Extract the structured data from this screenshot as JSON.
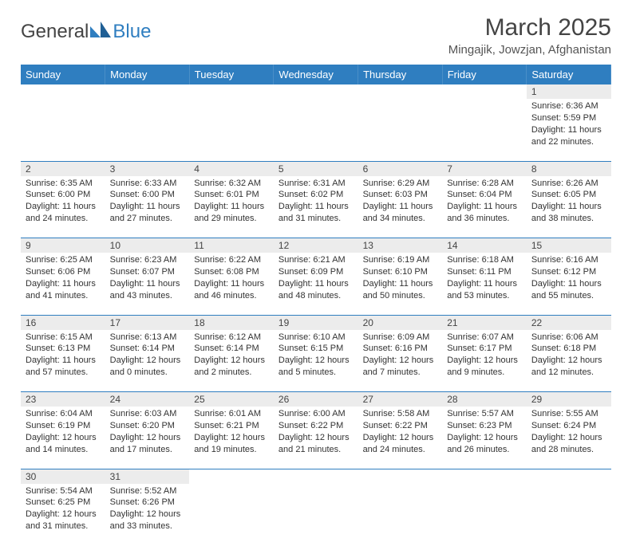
{
  "logo": {
    "text1": "General",
    "text2": "Blue"
  },
  "title": "March 2025",
  "location": "Mingajik, Jowzjan, Afghanistan",
  "colors": {
    "header_bg": "#2f7ec0",
    "header_text": "#ffffff",
    "daynum_bg": "#ececec",
    "border": "#2f7ec0",
    "body_text": "#333333"
  },
  "weekdays": [
    "Sunday",
    "Monday",
    "Tuesday",
    "Wednesday",
    "Thursday",
    "Friday",
    "Saturday"
  ],
  "weeks": [
    [
      null,
      null,
      null,
      null,
      null,
      null,
      {
        "n": "1",
        "sr": "6:36 AM",
        "ss": "5:59 PM",
        "dl": "11 hours and 22 minutes."
      }
    ],
    [
      {
        "n": "2",
        "sr": "6:35 AM",
        "ss": "6:00 PM",
        "dl": "11 hours and 24 minutes."
      },
      {
        "n": "3",
        "sr": "6:33 AM",
        "ss": "6:00 PM",
        "dl": "11 hours and 27 minutes."
      },
      {
        "n": "4",
        "sr": "6:32 AM",
        "ss": "6:01 PM",
        "dl": "11 hours and 29 minutes."
      },
      {
        "n": "5",
        "sr": "6:31 AM",
        "ss": "6:02 PM",
        "dl": "11 hours and 31 minutes."
      },
      {
        "n": "6",
        "sr": "6:29 AM",
        "ss": "6:03 PM",
        "dl": "11 hours and 34 minutes."
      },
      {
        "n": "7",
        "sr": "6:28 AM",
        "ss": "6:04 PM",
        "dl": "11 hours and 36 minutes."
      },
      {
        "n": "8",
        "sr": "6:26 AM",
        "ss": "6:05 PM",
        "dl": "11 hours and 38 minutes."
      }
    ],
    [
      {
        "n": "9",
        "sr": "6:25 AM",
        "ss": "6:06 PM",
        "dl": "11 hours and 41 minutes."
      },
      {
        "n": "10",
        "sr": "6:23 AM",
        "ss": "6:07 PM",
        "dl": "11 hours and 43 minutes."
      },
      {
        "n": "11",
        "sr": "6:22 AM",
        "ss": "6:08 PM",
        "dl": "11 hours and 46 minutes."
      },
      {
        "n": "12",
        "sr": "6:21 AM",
        "ss": "6:09 PM",
        "dl": "11 hours and 48 minutes."
      },
      {
        "n": "13",
        "sr": "6:19 AM",
        "ss": "6:10 PM",
        "dl": "11 hours and 50 minutes."
      },
      {
        "n": "14",
        "sr": "6:18 AM",
        "ss": "6:11 PM",
        "dl": "11 hours and 53 minutes."
      },
      {
        "n": "15",
        "sr": "6:16 AM",
        "ss": "6:12 PM",
        "dl": "11 hours and 55 minutes."
      }
    ],
    [
      {
        "n": "16",
        "sr": "6:15 AM",
        "ss": "6:13 PM",
        "dl": "11 hours and 57 minutes."
      },
      {
        "n": "17",
        "sr": "6:13 AM",
        "ss": "6:14 PM",
        "dl": "12 hours and 0 minutes."
      },
      {
        "n": "18",
        "sr": "6:12 AM",
        "ss": "6:14 PM",
        "dl": "12 hours and 2 minutes."
      },
      {
        "n": "19",
        "sr": "6:10 AM",
        "ss": "6:15 PM",
        "dl": "12 hours and 5 minutes."
      },
      {
        "n": "20",
        "sr": "6:09 AM",
        "ss": "6:16 PM",
        "dl": "12 hours and 7 minutes."
      },
      {
        "n": "21",
        "sr": "6:07 AM",
        "ss": "6:17 PM",
        "dl": "12 hours and 9 minutes."
      },
      {
        "n": "22",
        "sr": "6:06 AM",
        "ss": "6:18 PM",
        "dl": "12 hours and 12 minutes."
      }
    ],
    [
      {
        "n": "23",
        "sr": "6:04 AM",
        "ss": "6:19 PM",
        "dl": "12 hours and 14 minutes."
      },
      {
        "n": "24",
        "sr": "6:03 AM",
        "ss": "6:20 PM",
        "dl": "12 hours and 17 minutes."
      },
      {
        "n": "25",
        "sr": "6:01 AM",
        "ss": "6:21 PM",
        "dl": "12 hours and 19 minutes."
      },
      {
        "n": "26",
        "sr": "6:00 AM",
        "ss": "6:22 PM",
        "dl": "12 hours and 21 minutes."
      },
      {
        "n": "27",
        "sr": "5:58 AM",
        "ss": "6:22 PM",
        "dl": "12 hours and 24 minutes."
      },
      {
        "n": "28",
        "sr": "5:57 AM",
        "ss": "6:23 PM",
        "dl": "12 hours and 26 minutes."
      },
      {
        "n": "29",
        "sr": "5:55 AM",
        "ss": "6:24 PM",
        "dl": "12 hours and 28 minutes."
      }
    ],
    [
      {
        "n": "30",
        "sr": "5:54 AM",
        "ss": "6:25 PM",
        "dl": "12 hours and 31 minutes."
      },
      {
        "n": "31",
        "sr": "5:52 AM",
        "ss": "6:26 PM",
        "dl": "12 hours and 33 minutes."
      },
      null,
      null,
      null,
      null,
      null
    ]
  ],
  "labels": {
    "sunrise": "Sunrise:",
    "sunset": "Sunset:",
    "daylight": "Daylight:"
  }
}
